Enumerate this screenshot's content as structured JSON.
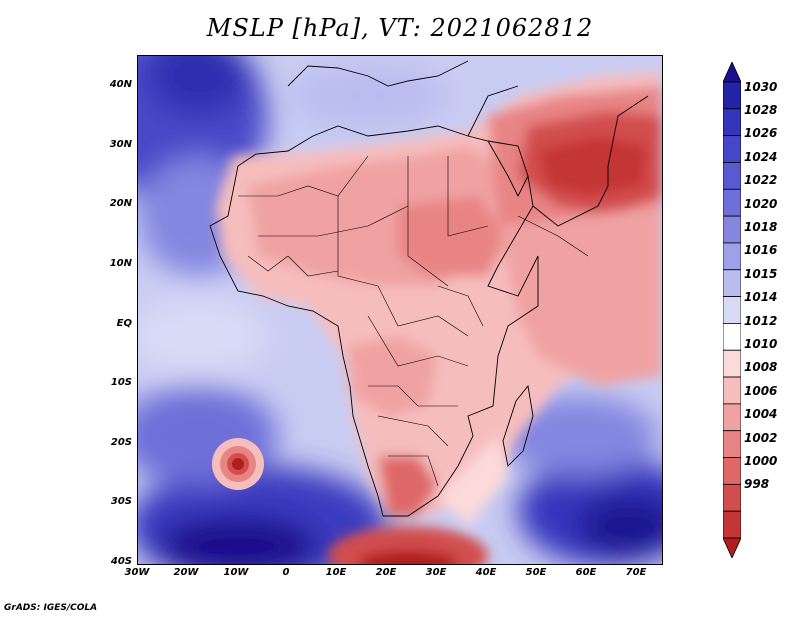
{
  "title": "MSLP [hPa], VT: 2021062812",
  "footer": "GrADS: IGES/COLA",
  "map": {
    "variable": "MSLP",
    "units": "hPa",
    "valid_time": "2021062812",
    "lat_ticks": [
      "40N",
      "30N",
      "20N",
      "10N",
      "EQ",
      "10S",
      "20S",
      "30S",
      "40S"
    ],
    "lon_ticks": [
      "30W",
      "20W",
      "10W",
      "0",
      "10E",
      "20E",
      "30E",
      "40E",
      "50E",
      "60E",
      "70E"
    ],
    "lat_range": [
      -40,
      45
    ],
    "lon_range": [
      -30,
      75
    ]
  },
  "colorbar": {
    "levels": [
      "1030",
      "1028",
      "1026",
      "1024",
      "1022",
      "1020",
      "1018",
      "1016",
      "1015",
      "1014",
      "1012",
      "1010",
      "1008",
      "1006",
      "1004",
      "1002",
      "1000",
      "998"
    ],
    "colors": [
      "#1a0f8c",
      "#2323a6",
      "#3434bd",
      "#4646c8",
      "#5a5ad0",
      "#6e70d8",
      "#8486e0",
      "#9ea0e8",
      "#babcf0",
      "#d8daf6",
      "#ffffff",
      "#fcdada",
      "#f6bdbd",
      "#f0a2a2",
      "#e88484",
      "#de6868",
      "#d24e4e",
      "#c43636",
      "#b01e1e"
    ]
  }
}
